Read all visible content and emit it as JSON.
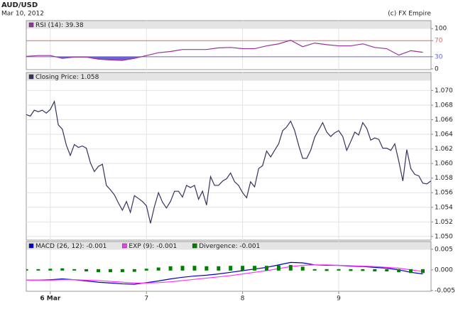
{
  "header": {
    "title": "AUD/USD",
    "subtitle": "Mar 10, 2012",
    "source": "(c) FX Empire"
  },
  "chart_data": [
    {
      "type": "line",
      "x": [
        5.75,
        5.875,
        6,
        6.125,
        6.25,
        6.375,
        6.5,
        6.625,
        6.75,
        6.875,
        7,
        7.125,
        7.25,
        7.375,
        7.5,
        7.625,
        7.75,
        7.875,
        8,
        8.125,
        8.25,
        8.375,
        8.5,
        8.625,
        8.75,
        8.875,
        9,
        9.125,
        9.25,
        9.375,
        9.5,
        9.625,
        9.75,
        9.875
      ],
      "series": [
        {
          "name": "RSI (14): 39.38",
          "color": "#993399",
          "values": [
            31,
            33,
            33,
            26,
            29,
            29,
            24,
            22,
            21,
            26,
            33,
            40,
            43,
            48,
            48,
            48,
            52,
            53,
            50,
            50,
            57,
            62,
            71,
            55,
            64,
            60,
            57,
            57,
            62,
            53,
            50,
            34,
            45,
            41
          ]
        }
      ],
      "reference_lines": [
        {
          "value": 70,
          "color": "#e06666",
          "fill": "#cc66cc",
          "fill_side": "above"
        },
        {
          "value": 30,
          "color": "#6666dd",
          "fill": "#5544cc",
          "fill_side": "below"
        }
      ],
      "xlim": [
        5.75,
        9.96
      ],
      "ylim": [
        -2,
        118
      ],
      "yticks": [
        0,
        30,
        70,
        100
      ]
    },
    {
      "type": "line",
      "x": [
        5.75,
        5.792,
        5.833,
        5.875,
        5.917,
        5.958,
        6.0,
        6.042,
        6.083,
        6.125,
        6.167,
        6.208,
        6.25,
        6.292,
        6.333,
        6.375,
        6.417,
        6.458,
        6.5,
        6.542,
        6.583,
        6.625,
        6.667,
        6.708,
        6.75,
        6.792,
        6.833,
        6.875,
        6.917,
        6.958,
        7.0,
        7.042,
        7.083,
        7.125,
        7.167,
        7.208,
        7.25,
        7.292,
        7.333,
        7.375,
        7.417,
        7.458,
        7.5,
        7.542,
        7.583,
        7.625,
        7.667,
        7.708,
        7.75,
        7.792,
        7.833,
        7.875,
        7.917,
        7.958,
        8.0,
        8.042,
        8.083,
        8.125,
        8.167,
        8.208,
        8.25,
        8.292,
        8.333,
        8.375,
        8.417,
        8.458,
        8.5,
        8.542,
        8.583,
        8.625,
        8.667,
        8.708,
        8.75,
        8.792,
        8.833,
        8.875,
        8.917,
        8.958,
        9.0,
        9.042,
        9.083,
        9.125,
        9.167,
        9.208,
        9.25,
        9.292,
        9.333,
        9.375,
        9.417,
        9.458,
        9.5,
        9.542,
        9.583,
        9.625,
        9.667,
        9.708,
        9.75,
        9.792,
        9.833,
        9.875,
        9.917,
        9.958
      ],
      "series": [
        {
          "name": "Closing Price: 1.058",
          "color": "#33335e",
          "values": [
            1.0667,
            1.0665,
            1.0673,
            1.0671,
            1.0673,
            1.0669,
            1.0674,
            1.0685,
            1.0653,
            1.0647,
            1.0625,
            1.0611,
            1.0626,
            1.0622,
            1.0624,
            1.0621,
            1.0601,
            1.0589,
            1.0596,
            1.0599,
            1.057,
            1.0564,
            1.0557,
            1.0546,
            1.0536,
            1.0548,
            1.0533,
            1.0556,
            1.0552,
            1.0548,
            1.0542,
            1.0518,
            1.0541,
            1.056,
            1.0547,
            1.0539,
            1.0548,
            1.0562,
            1.0562,
            1.0554,
            1.057,
            1.0567,
            1.057,
            1.0551,
            1.0562,
            1.0543,
            1.0582,
            1.057,
            1.057,
            1.0576,
            1.0579,
            1.0587,
            1.0575,
            1.057,
            1.056,
            1.0553,
            1.0575,
            1.0568,
            1.0593,
            1.0597,
            1.0617,
            1.0609,
            1.0618,
            1.0627,
            1.0645,
            1.065,
            1.0658,
            1.0645,
            1.0625,
            1.0607,
            1.0607,
            1.0618,
            1.0636,
            1.0646,
            1.0656,
            1.0643,
            1.0637,
            1.0642,
            1.0645,
            1.0637,
            1.0618,
            1.063,
            1.0643,
            1.0639,
            1.0656,
            1.0648,
            1.0632,
            1.0635,
            1.0633,
            1.0621,
            1.0621,
            1.0618,
            1.0627,
            1.0603,
            1.0576,
            1.0619,
            1.0593,
            1.0585,
            1.0583,
            1.0573,
            1.0572,
            1.0576
          ]
        }
      ],
      "xlim": [
        5.75,
        9.96
      ],
      "ylim": [
        1.0495,
        1.0715
      ],
      "grid": true,
      "yticks": [
        {
          "value": 1.05,
          "label": "1.050"
        },
        {
          "value": 1.052,
          "label": "1.052"
        },
        {
          "value": 1.054,
          "label": "1.054"
        },
        {
          "value": 1.056,
          "label": "1.056"
        },
        {
          "value": 1.058,
          "label": "1.058"
        },
        {
          "value": 1.06,
          "label": "1.060"
        },
        {
          "value": 1.062,
          "label": "1.062"
        },
        {
          "value": 1.064,
          "label": "1.064"
        },
        {
          "value": 1.066,
          "label": "1.066"
        },
        {
          "value": 1.068,
          "label": "1.068"
        },
        {
          "value": 1.07,
          "label": "1.070"
        }
      ]
    },
    {
      "type": "line",
      "x": [
        5.75,
        5.875,
        6,
        6.125,
        6.25,
        6.375,
        6.5,
        6.625,
        6.75,
        6.875,
        7,
        7.125,
        7.25,
        7.375,
        7.5,
        7.625,
        7.75,
        7.875,
        8,
        8.125,
        8.25,
        8.375,
        8.5,
        8.625,
        8.75,
        8.875,
        9,
        9.125,
        9.25,
        9.375,
        9.5,
        9.625,
        9.75,
        9.875
      ],
      "series": [
        {
          "name": "MACD (26, 12): -0.001",
          "color": "#0000cc",
          "values": [
            -0.0025,
            -0.0025,
            -0.0024,
            -0.0022,
            -0.0024,
            -0.0027,
            -0.003,
            -0.0032,
            -0.0034,
            -0.0035,
            -0.0031,
            -0.0027,
            -0.0022,
            -0.0018,
            -0.0015,
            -0.0013,
            -0.001,
            -0.0006,
            -0.0002,
            0.0002,
            0.0006,
            0.0012,
            0.0018,
            0.0017,
            0.0012,
            0.0011,
            0.0011,
            0.0009,
            0.0008,
            0.0006,
            0.0004,
            0.0,
            -0.0006,
            -0.001
          ]
        },
        {
          "name": "EXP (9): -0.001",
          "color": "#ff33ff",
          "values": [
            -0.0025,
            -0.0025,
            -0.0025,
            -0.0024,
            -0.0024,
            -0.0025,
            -0.0026,
            -0.0028,
            -0.003,
            -0.0032,
            -0.0032,
            -0.0031,
            -0.0029,
            -0.0026,
            -0.0023,
            -0.002,
            -0.0017,
            -0.0014,
            -0.001,
            -0.0006,
            -0.0002,
            0.0003,
            0.0008,
            0.0011,
            0.0012,
            0.0012,
            0.0011,
            0.001,
            0.0009,
            0.0008,
            0.0006,
            0.0004,
            0.0,
            -0.0004
          ]
        },
        {
          "name": "Divergence: -0.001",
          "color": "#008000",
          "type": "bar",
          "values": [
            0,
            0,
            0.0001,
            0.0002,
            0,
            -0.0002,
            -0.0004,
            -0.0004,
            -0.0004,
            -0.0003,
            0.0001,
            0.0004,
            0.0007,
            0.0008,
            0.0008,
            0.0007,
            0.0007,
            0.0008,
            0.0008,
            0.0008,
            0.0008,
            0.0009,
            0.001,
            0.0006,
            0,
            -0.0001,
            0,
            -0.0001,
            -0.0001,
            -0.0002,
            -0.0002,
            -0.0004,
            -0.0006,
            -0.0006
          ]
        }
      ],
      "xlim": [
        5.75,
        9.96
      ],
      "ylim": [
        -0.0052,
        0.0067
      ],
      "yticks": [
        {
          "value": 0.005,
          "label": "0.005"
        },
        {
          "value": 0,
          "label": "0.000"
        },
        {
          "value": -0.005,
          "label": "-0.005"
        }
      ],
      "xticks": [
        {
          "value": 6,
          "label": "6 Mar"
        },
        7,
        8,
        9
      ]
    }
  ]
}
